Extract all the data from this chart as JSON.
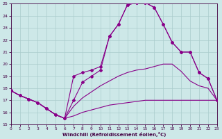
{
  "bg_color": "#cde8e8",
  "line_color": "#880088",
  "grid_color": "#aacccc",
  "xlim": [
    0,
    23
  ],
  "ylim": [
    15,
    25
  ],
  "yticks": [
    15,
    16,
    17,
    18,
    19,
    20,
    21,
    22,
    23,
    24,
    25
  ],
  "xticks": [
    0,
    1,
    2,
    3,
    4,
    5,
    6,
    7,
    8,
    9,
    10,
    11,
    12,
    13,
    14,
    15,
    16,
    17,
    18,
    19,
    20,
    21,
    22,
    23
  ],
  "xlabel": "Windchill (Refroidissement éolien,°C)",
  "line1_x": [
    0,
    1,
    2,
    3,
    4,
    5,
    6,
    7,
    8,
    9,
    10,
    11,
    12,
    13,
    14,
    15,
    16,
    17,
    18,
    19,
    20,
    21,
    22,
    23
  ],
  "line1_y": [
    17.8,
    17.4,
    17.1,
    16.8,
    16.3,
    15.8,
    15.5,
    15.7,
    16.0,
    16.2,
    16.4,
    16.6,
    16.7,
    16.8,
    16.9,
    17.0,
    17.0,
    17.0,
    17.0,
    17.0,
    17.0,
    17.0,
    17.0,
    17.0
  ],
  "line2_x": [
    0,
    1,
    2,
    3,
    4,
    5,
    6,
    7,
    8,
    9,
    10,
    11,
    12,
    13,
    14,
    15,
    16,
    17,
    18,
    19,
    20,
    21,
    22,
    23
  ],
  "line2_y": [
    17.8,
    17.4,
    17.1,
    16.8,
    16.3,
    15.8,
    15.5,
    16.5,
    17.2,
    17.7,
    18.2,
    18.6,
    19.0,
    19.3,
    19.5,
    19.6,
    19.8,
    20.0,
    20.0,
    19.4,
    18.6,
    18.2,
    18.0,
    17.0
  ],
  "line3_x": [
    0,
    1,
    2,
    3,
    4,
    5,
    6,
    7,
    8,
    9,
    10,
    11,
    12,
    13,
    14,
    15,
    16,
    17,
    18,
    19,
    20,
    21,
    22,
    23
  ],
  "line3_y": [
    17.8,
    17.4,
    17.1,
    16.8,
    16.3,
    15.8,
    15.5,
    17.0,
    18.5,
    19.0,
    19.5,
    22.3,
    23.3,
    24.9,
    25.1,
    25.1,
    24.7,
    23.3,
    21.8,
    21.0,
    21.0,
    19.3,
    18.8,
    17.0
  ],
  "line4_x": [
    0,
    1,
    2,
    3,
    4,
    5,
    6,
    7,
    8,
    9,
    10,
    11,
    12,
    13,
    14,
    15,
    16,
    17,
    18,
    19,
    20,
    21,
    22,
    23
  ],
  "line4_y": [
    17.8,
    17.4,
    17.1,
    16.8,
    16.3,
    15.8,
    15.5,
    19.0,
    19.3,
    19.5,
    19.8,
    22.3,
    23.3,
    24.9,
    25.1,
    25.1,
    24.7,
    23.3,
    21.8,
    21.0,
    21.0,
    19.3,
    18.8,
    17.0
  ]
}
